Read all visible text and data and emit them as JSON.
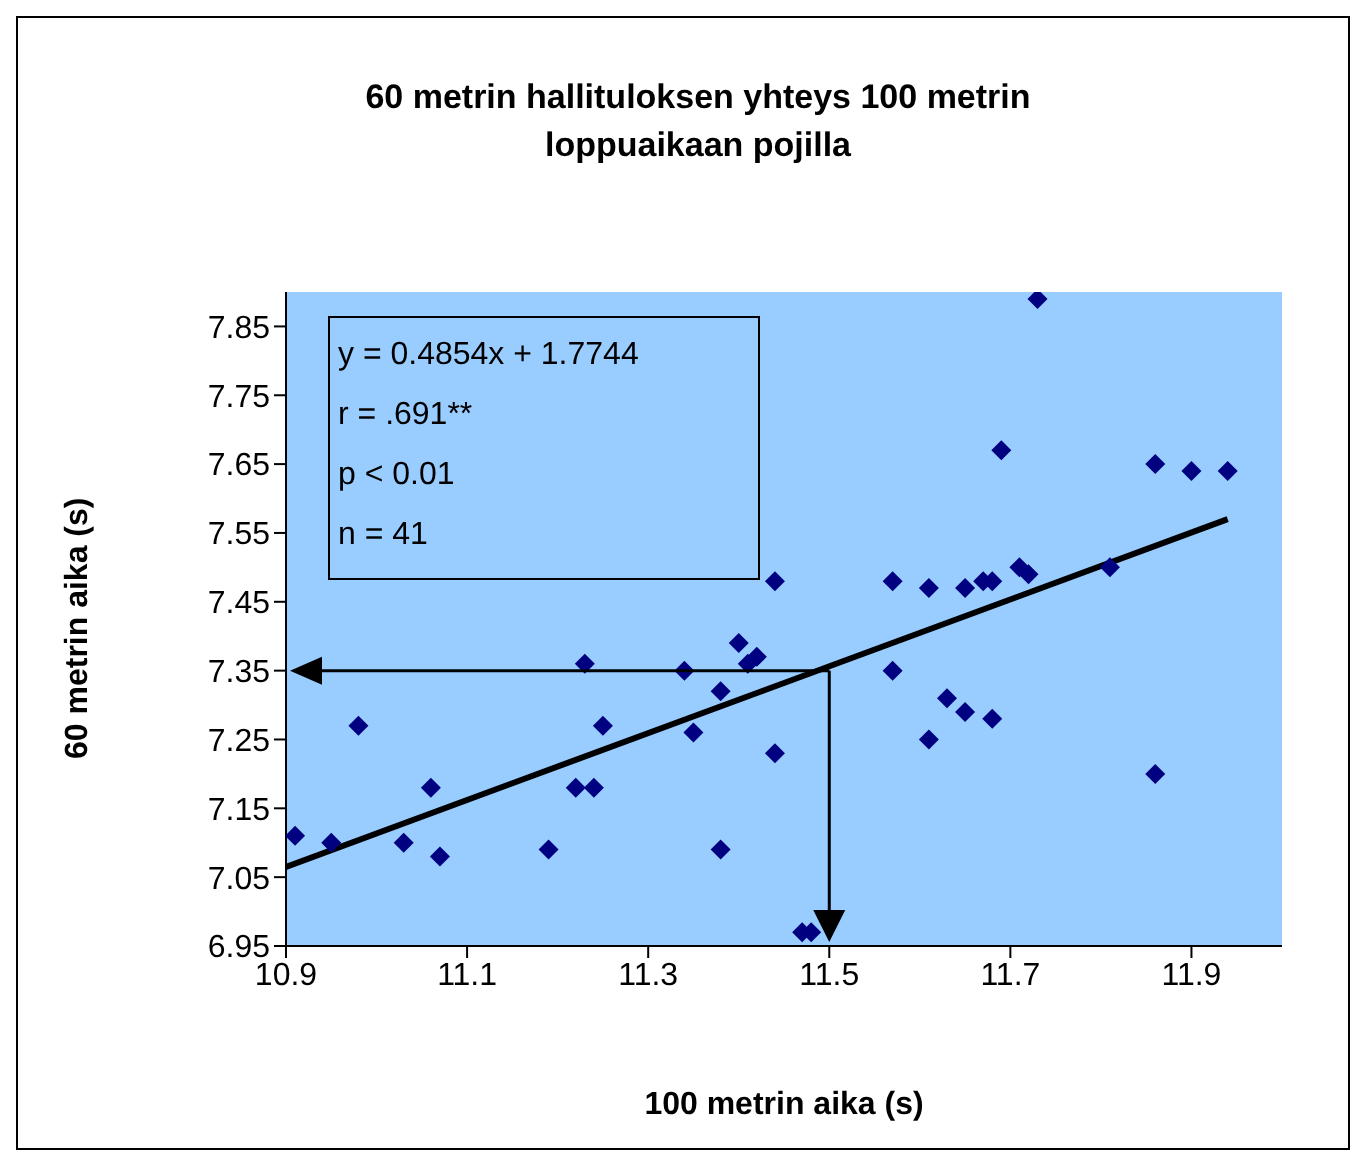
{
  "chart_data": {
    "type": "scatter",
    "title": "60 metrin hallituloksen yhteys 100 metrin loppuaikaan pojilla",
    "xlabel": "100 metrin aika (s)",
    "ylabel": "60 metrin aika (s)",
    "annotations": [
      "y = 0.4854x + 1.7744",
      "r = .691**",
      "p < 0.01",
      "n = 41"
    ],
    "xlim": [
      10.9,
      12.0
    ],
    "xticks": [
      10.9,
      11.1,
      11.3,
      11.5,
      11.7,
      11.9
    ],
    "ylim": [
      6.95,
      7.9
    ],
    "yticks": [
      6.95,
      7.05,
      7.15,
      7.25,
      7.35,
      7.45,
      7.55,
      7.65,
      7.75,
      7.85
    ],
    "grid": false,
    "legend": false,
    "series": [
      {
        "color": "#000080",
        "marker": "diamond",
        "x": [
          10.91,
          10.95,
          10.98,
          11.03,
          11.06,
          11.07,
          11.19,
          11.22,
          11.23,
          11.24,
          11.25,
          11.34,
          11.35,
          11.38,
          11.38,
          11.4,
          11.41,
          11.42,
          11.44,
          11.57,
          11.63,
          11.65,
          11.68,
          11.61,
          11.86,
          11.47,
          11.48,
          11.73,
          11.69,
          11.86,
          11.9,
          11.94,
          11.44,
          11.57,
          11.61,
          11.65,
          11.67,
          11.68,
          11.71,
          11.72,
          11.81
        ],
        "values": [
          7.11,
          7.1,
          7.27,
          7.1,
          7.18,
          7.08,
          7.09,
          7.18,
          7.36,
          7.18,
          7.27,
          7.35,
          7.26,
          7.32,
          7.09,
          7.39,
          7.36,
          7.37,
          7.23,
          7.35,
          7.31,
          7.29,
          7.28,
          7.25,
          7.2,
          6.97,
          6.97,
          7.89,
          7.67,
          7.65,
          7.64,
          7.64,
          7.48,
          7.48,
          7.47,
          7.47,
          7.48,
          7.48,
          7.5,
          7.49,
          7.5
        ]
      },
      {
        "type": "line",
        "color": "#000000",
        "marker": "none",
        "x": [
          10.9,
          11.94
        ],
        "values": [
          7.065,
          7.57
        ]
      }
    ]
  }
}
